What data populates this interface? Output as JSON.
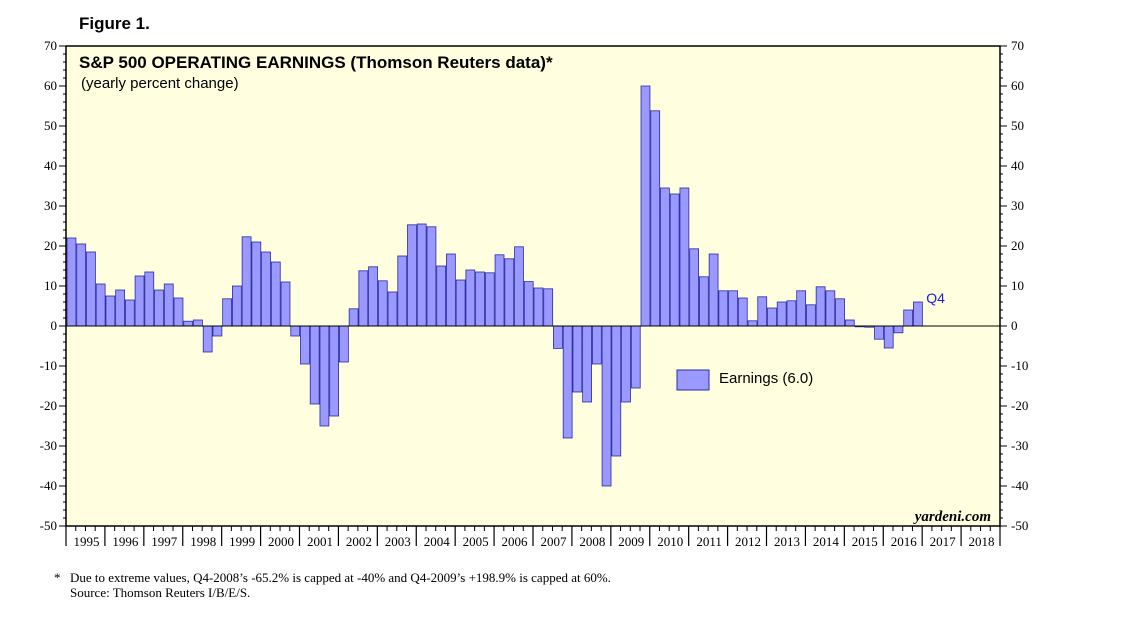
{
  "figure_label": "Figure 1.",
  "footnote": {
    "marker": "*",
    "text": "Due to extreme values, Q4-2008’s -65.2% is capped at -40% and Q4-2009’s +198.9% is capped at 60%.",
    "source": "Source: Thomson Reuters I/B/E/S."
  },
  "watermark": "yardeni.com",
  "colors": {
    "background": "#ffffe0",
    "bar_fill": "#9999ff",
    "bar_stroke": "#2a2aa0",
    "accent": "#2222cc"
  },
  "chart_data": {
    "type": "bar",
    "title": "S&P 500 OPERATING EARNINGS (Thomson Reuters data)*",
    "subtitle": "(yearly percent change)",
    "ylim": [
      -50,
      70
    ],
    "yticks": [
      -50,
      -40,
      -30,
      -20,
      -10,
      0,
      10,
      20,
      30,
      40,
      50,
      60,
      70
    ],
    "ytick_labels": [
      "-50",
      "-40",
      "-30",
      "-20",
      "-10",
      "0",
      "10",
      "20",
      "30",
      "40",
      "50",
      "60",
      "70"
    ],
    "year_labels": [
      "1995",
      "1996",
      "1997",
      "1998",
      "1999",
      "2000",
      "2001",
      "2002",
      "2003",
      "2004",
      "2005",
      "2006",
      "2007",
      "2008",
      "2009",
      "2010",
      "2011",
      "2012",
      "2013",
      "2014",
      "2015",
      "2016",
      "2017",
      "2018"
    ],
    "first_year": 1995,
    "legend_label": "Earnings (6.0)",
    "last_point_label": "Q4",
    "series": [
      {
        "name": "Earnings",
        "frequency": "quarterly",
        "values": [
          22,
          20.5,
          18.5,
          10.5,
          7.5,
          9,
          6.5,
          12.5,
          13.5,
          9,
          10.5,
          7,
          1.2,
          1.5,
          -6.5,
          -2.5,
          6.8,
          10,
          22.3,
          21,
          18.5,
          16,
          11,
          -2.5,
          -9.5,
          -19.5,
          -25,
          -22.5,
          -9,
          4.3,
          13.8,
          14.8,
          11.3,
          8.5,
          17.5,
          25.3,
          25.5,
          24.8,
          15,
          18,
          11.5,
          14,
          13.5,
          13.3,
          17.8,
          16.8,
          19.8,
          11.1,
          9.5,
          9.3,
          -5.6,
          -28,
          -16.5,
          -19,
          -9.5,
          -40,
          -32.5,
          -19,
          -15.5,
          60,
          53.8,
          34.5,
          33,
          34.5,
          19.3,
          12.3,
          18,
          8.8,
          8.8,
          7,
          1.3,
          7.3,
          4.5,
          6,
          6.3,
          8.8,
          5.3,
          9.8,
          8.8,
          6.8,
          1.5,
          0,
          -0.3,
          -3.3,
          -5.5,
          -1.7,
          4,
          6
        ]
      }
    ]
  }
}
